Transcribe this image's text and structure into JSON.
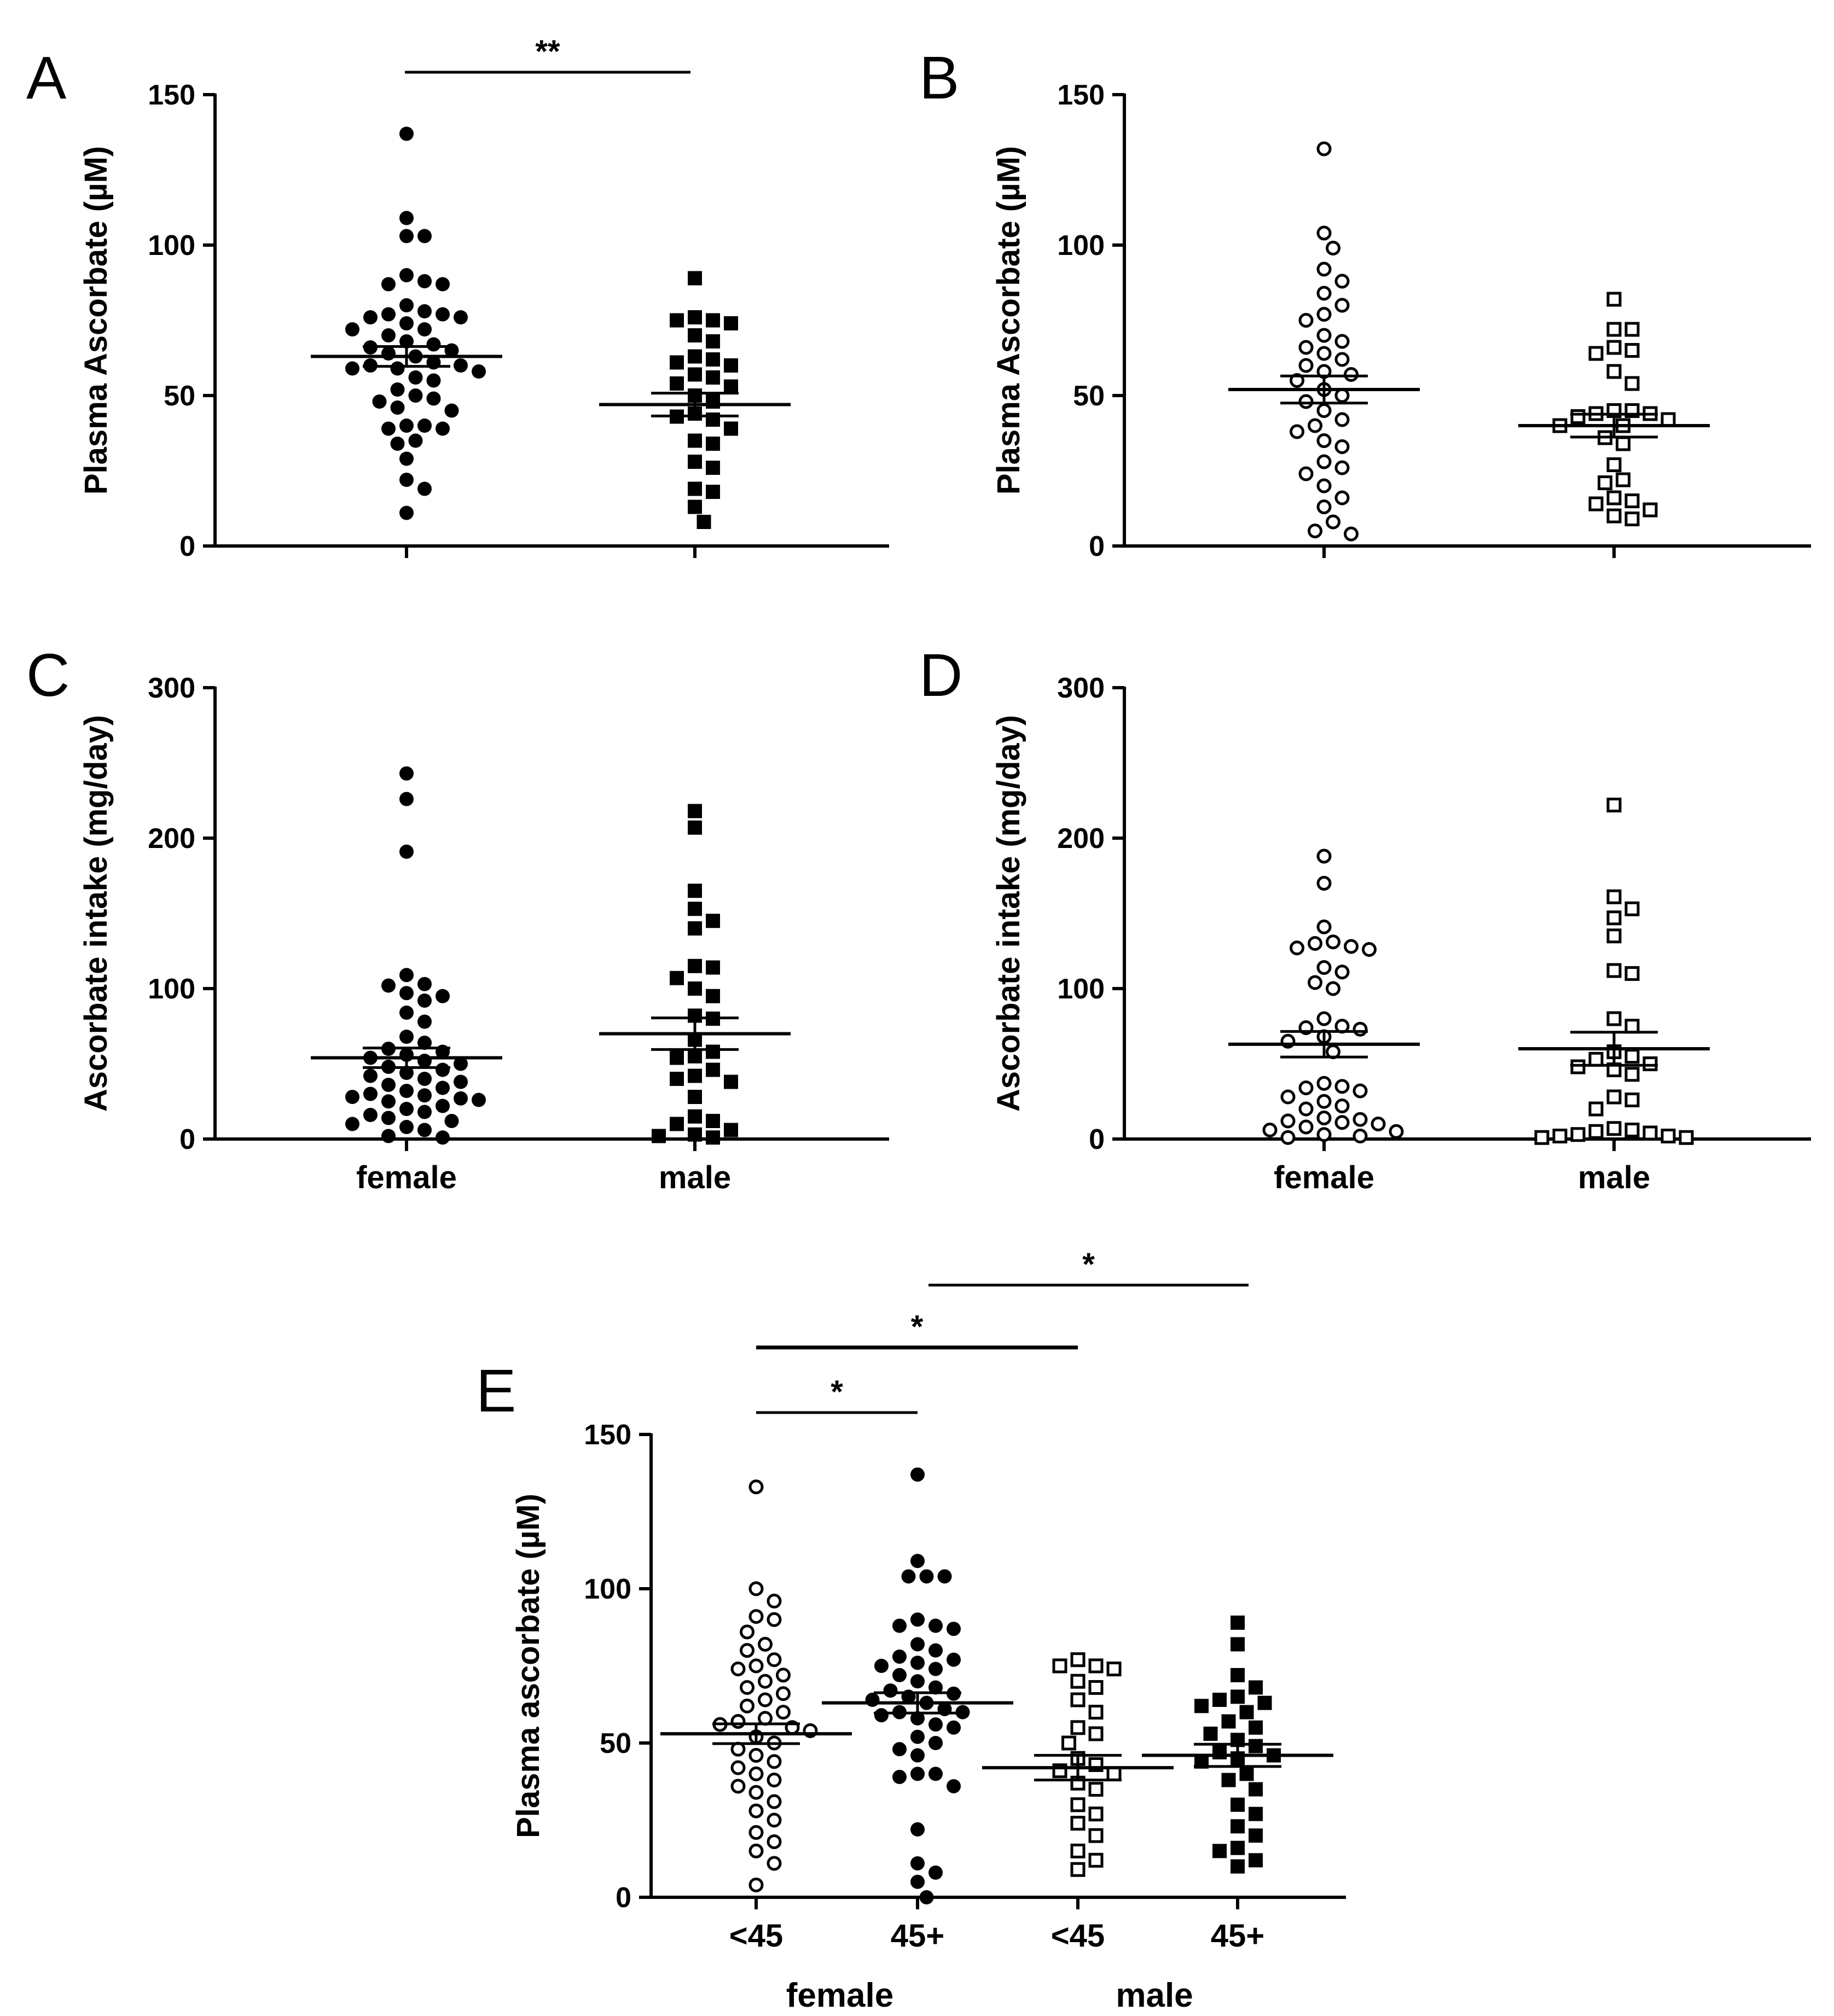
{
  "figure": {
    "colors": {
      "ink": "#000000",
      "background": "#ffffff"
    },
    "chart_data": [
      {
        "id": "A",
        "type": "scatter",
        "panel_label": "A",
        "ylabel": "Plasma Ascorbate (µM)",
        "ylim": [
          0,
          150
        ],
        "yticks": [
          "0",
          "50",
          "100",
          "150"
        ],
        "categories": [
          "female",
          "male"
        ],
        "show_category_labels": false,
        "series": [
          {
            "name": "female",
            "marker": "filled-circle",
            "mean": 63,
            "sem": 3.3,
            "values": [
              137,
              109,
              103,
              103,
              90,
              88,
              87,
              87,
              80,
              78,
              77,
              77,
              76,
              76,
              74,
              72,
              72,
              70,
              68,
              67,
              66,
              65,
              64,
              63,
              61,
              60,
              60,
              59,
              59,
              58,
              56,
              55,
              52,
              50,
              49,
              48,
              46,
              45,
              40,
              40,
              39,
              39,
              35,
              34,
              29,
              22,
              19,
              11
            ]
          },
          {
            "name": "male",
            "marker": "filled-square",
            "mean": 47,
            "sem": 3.8,
            "values": [
              89,
              76,
              75,
              75,
              74,
              70,
              68,
              63,
              62,
              61,
              60,
              57,
              56,
              54,
              53,
              50,
              48,
              44,
              43,
              42,
              39,
              35,
              34,
              28,
              26,
              19,
              18,
              13,
              8
            ]
          }
        ],
        "significance": [
          {
            "label": "**",
            "from": 0,
            "to": 1
          }
        ]
      },
      {
        "id": "B",
        "type": "scatter",
        "panel_label": "B",
        "ylabel": "Plasma Ascorbate (µM)",
        "ylim": [
          0,
          150
        ],
        "yticks": [
          "0",
          "50",
          "100",
          "150"
        ],
        "categories": [
          "female",
          "male"
        ],
        "show_category_labels": false,
        "series": [
          {
            "name": "female",
            "marker": "open-circle",
            "mean": 52,
            "sem": 4.5,
            "values": [
              132,
              104,
              99,
              92,
              88,
              84,
              80,
              77,
              75,
              70,
              68,
              66,
              64,
              62,
              60,
              58,
              57,
              55,
              52,
              50,
              48,
              45,
              42,
              40,
              38,
              35,
              33,
              28,
              26,
              24,
              20,
              16,
              13,
              8,
              5,
              4
            ]
          },
          {
            "name": "male",
            "marker": "open-square",
            "mean": 40,
            "sem": 3.8,
            "values": [
              82,
              72,
              72,
              66,
              65,
              64,
              58,
              54,
              45,
              45,
              44,
              44,
              43,
              42,
              40,
              40,
              36,
              34,
              27,
              22,
              21,
              16,
              15,
              14,
              12,
              10,
              9
            ]
          }
        ],
        "significance": []
      },
      {
        "id": "C",
        "type": "scatter",
        "panel_label": "C",
        "ylabel": "Ascorbate intake (mg/day)",
        "ylim": [
          0,
          300
        ],
        "yticks": [
          "0",
          "100",
          "200",
          "300"
        ],
        "categories": [
          "female",
          "male"
        ],
        "show_category_labels": true,
        "series": [
          {
            "name": "female",
            "marker": "filled-circle",
            "mean": 54,
            "sem": 6.5,
            "values": [
              243,
              226,
              191,
              109,
              103,
              102,
              97,
              95,
              92,
              84,
              78,
              68,
              64,
              60,
              58,
              56,
              54,
              52,
              50,
              48,
              46,
              44,
              42,
              40,
              38,
              36,
              34,
              32,
              30,
              29,
              28,
              27,
              26,
              25,
              22,
              20,
              18,
              16,
              14,
              12,
              10,
              8,
              6,
              2,
              1
            ]
          },
          {
            "name": "male",
            "marker": "filled-square",
            "mean": 70,
            "sem": 10.5,
            "values": [
              218,
              207,
              165,
              153,
              145,
              140,
              115,
              114,
              107,
              100,
              95,
              82,
              80,
              66,
              58,
              55,
              54,
              46,
              42,
              40,
              38,
              28,
              15,
              12,
              10,
              6,
              3,
              2,
              1
            ]
          }
        ],
        "significance": []
      },
      {
        "id": "D",
        "type": "scatter",
        "panel_label": "D",
        "ylabel": "Ascorbate intake (mg/day)",
        "ylim": [
          0,
          300
        ],
        "yticks": [
          "0",
          "100",
          "200",
          "300"
        ],
        "categories": [
          "female",
          "male"
        ],
        "show_category_labels": true,
        "series": [
          {
            "name": "female",
            "marker": "open-circle",
            "mean": 63,
            "sem": 8.5,
            "values": [
              188,
              170,
              141,
              131,
              130,
              128,
              127,
              126,
              114,
              111,
              104,
              100,
              80,
              75,
              74,
              73,
              68,
              65,
              58,
              37,
              35,
              34,
              32,
              28,
              25,
              22,
              20,
              14,
              13,
              12,
              11,
              10,
              8,
              6,
              5,
              3,
              2,
              1
            ]
          },
          {
            "name": "male",
            "marker": "open-square",
            "mean": 60,
            "sem": 11,
            "values": [
              222,
              161,
              153,
              147,
              135,
              112,
              110,
              80,
              75,
              58,
              55,
              53,
              50,
              48,
              46,
              43,
              28,
              26,
              20,
              7,
              6,
              5,
              4,
              3,
              2,
              2,
              1,
              1
            ]
          }
        ],
        "significance": []
      },
      {
        "id": "E",
        "type": "scatter",
        "panel_label": "E",
        "ylabel": "Plasma ascorbate (µM)",
        "ylim": [
          0,
          150
        ],
        "yticks": [
          "0",
          "50",
          "100",
          "150"
        ],
        "categories": [
          "<45",
          "45+",
          "<45",
          "45+"
        ],
        "show_category_labels": true,
        "groups": [
          {
            "label": "female",
            "categories": [
              0,
              1
            ]
          },
          {
            "label": "male",
            "categories": [
              2,
              3
            ]
          }
        ],
        "series": [
          {
            "name": "female <45",
            "marker": "open-circle",
            "mean": 53,
            "sem": 3.2,
            "values": [
              133,
              100,
              96,
              91,
              90,
              86,
              82,
              80,
              77,
              75,
              74,
              72,
              70,
              68,
              66,
              64,
              62,
              60,
              58,
              57,
              56,
              55,
              54,
              52,
              50,
              48,
              46,
              44,
              42,
              40,
              38,
              36,
              34,
              31,
              28,
              25,
              21,
              18,
              15,
              11,
              4
            ]
          },
          {
            "name": "female 45+",
            "marker": "filled-circle",
            "mean": 63,
            "sem": 3.3,
            "values": [
              137,
              109,
              104,
              104,
              104,
              90,
              88,
              88,
              87,
              82,
              80,
              78,
              77,
              76,
              75,
              74,
              72,
              70,
              68,
              67,
              66,
              65,
              64,
              63,
              61,
              60,
              60,
              59,
              58,
              56,
              55,
              52,
              50,
              48,
              46,
              40,
              40,
              39,
              36,
              22,
              11,
              8,
              5,
              0
            ]
          },
          {
            "name": "male <45",
            "marker": "open-square",
            "mean": 42,
            "sem": 4,
            "values": [
              77,
              75,
              75,
              74,
              70,
              68,
              64,
              60,
              55,
              53,
              50,
              45,
              43,
              41,
              40,
              37,
              35,
              30,
              27,
              24,
              20,
              15,
              12,
              9
            ]
          },
          {
            "name": "male 45+",
            "marker": "filled-square",
            "mean": 46,
            "sem": 3.6,
            "values": [
              89,
              82,
              72,
              68,
              65,
              64,
              63,
              62,
              60,
              57,
              55,
              53,
              51,
              49,
              47,
              46,
              45,
              44,
              40,
              38,
              35,
              30,
              27,
              23,
              20,
              16,
              15,
              12,
              10
            ]
          }
        ],
        "significance": [
          {
            "label": "*",
            "from": 0,
            "to": 1
          },
          {
            "label": "*",
            "from": 0,
            "to": 2
          },
          {
            "label": "*",
            "from": 1,
            "to": 3
          }
        ]
      }
    ]
  }
}
